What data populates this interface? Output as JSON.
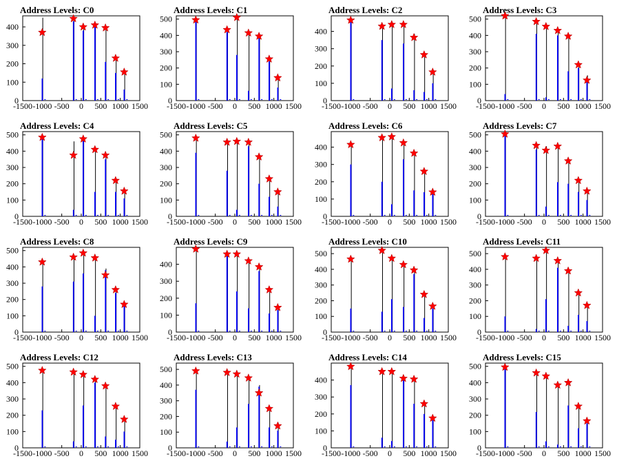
{
  "colors": {
    "background": "#ffffff",
    "frame": "#000000",
    "bar": "#0000ff",
    "marker": "#ff0000",
    "trace": "#000000"
  },
  "chart_data": [
    {
      "type": "bar",
      "title": "Address Levels: C0",
      "xlim": [
        -1500,
        1500
      ],
      "ylim": [
        0,
        460
      ],
      "xticks": [
        -1500,
        -1000,
        -500,
        0,
        500,
        1000,
        1500
      ],
      "yticks": [
        0,
        100,
        200,
        300,
        400
      ],
      "x": [
        -1000,
        -200,
        50,
        350,
        620,
        880,
        1100
      ],
      "values": [
        120,
        430,
        380,
        400,
        210,
        150,
        60
      ],
      "trace": [
        450,
        450,
        410,
        420,
        400,
        235,
        165
      ],
      "peaks": {
        "x": [
          -1000,
          -200,
          50,
          350,
          620,
          880,
          1100
        ],
        "y": [
          370,
          445,
          400,
          410,
          395,
          230,
          155
        ]
      }
    },
    {
      "type": "bar",
      "title": "Address Levels: C1",
      "xlim": [
        -1500,
        1500
      ],
      "ylim": [
        0,
        520
      ],
      "xticks": [
        -1500,
        -1000,
        -500,
        0,
        500,
        1000,
        1500
      ],
      "yticks": [
        0,
        100,
        200,
        300,
        400,
        500
      ],
      "x": [
        -1000,
        -200,
        50,
        350,
        620,
        880,
        1100
      ],
      "values": [
        490,
        420,
        280,
        60,
        390,
        240,
        80
      ],
      "trace": [
        495,
        440,
        510,
        420,
        395,
        255,
        150
      ],
      "peaks": {
        "x": [
          -1000,
          -200,
          50,
          350,
          620,
          880,
          1100
        ],
        "y": [
          495,
          435,
          510,
          415,
          395,
          255,
          140
        ]
      }
    },
    {
      "type": "bar",
      "title": "Address Levels: C2",
      "xlim": [
        -1500,
        1500
      ],
      "ylim": [
        0,
        490
      ],
      "xticks": [
        -1500,
        -1000,
        -500,
        0,
        500,
        1000,
        1500
      ],
      "yticks": [
        0,
        100,
        200,
        300,
        400
      ],
      "x": [
        -1000,
        -200,
        50,
        350,
        620,
        880,
        1100
      ],
      "values": [
        460,
        350,
        70,
        330,
        60,
        50,
        100
      ],
      "trace": [
        470,
        440,
        450,
        450,
        385,
        275,
        170
      ],
      "peaks": {
        "x": [
          -1000,
          -200,
          50,
          350,
          620,
          880,
          1100
        ],
        "y": [
          465,
          430,
          440,
          440,
          365,
          265,
          165
        ]
      }
    },
    {
      "type": "bar",
      "title": "Address Levels: C3",
      "xlim": [
        -1500,
        1500
      ],
      "ylim": [
        0,
        520
      ],
      "xticks": [
        -1500,
        -1000,
        -500,
        0,
        500,
        1000,
        1500
      ],
      "yticks": [
        0,
        100,
        200,
        300,
        400,
        500
      ],
      "x": [
        -1000,
        -200,
        50,
        350,
        620,
        880,
        1100
      ],
      "values": [
        40,
        410,
        20,
        400,
        180,
        200,
        140
      ],
      "trace": [
        520,
        490,
        460,
        440,
        400,
        230,
        155
      ],
      "peaks": {
        "x": [
          -1000,
          -200,
          50,
          350,
          620,
          880,
          1100
        ],
        "y": [
          520,
          485,
          455,
          430,
          395,
          220,
          125
        ]
      }
    },
    {
      "type": "bar",
      "title": "Address Levels: C4",
      "xlim": [
        -1500,
        1500
      ],
      "ylim": [
        0,
        520
      ],
      "xticks": [
        -1500,
        -1000,
        -500,
        0,
        500,
        1000,
        1500
      ],
      "yticks": [
        0,
        100,
        200,
        300,
        400,
        500
      ],
      "x": [
        -1000,
        -200,
        50,
        350,
        620,
        880,
        1100
      ],
      "values": [
        480,
        40,
        470,
        150,
        350,
        150,
        110
      ],
      "trace": [
        490,
        460,
        480,
        420,
        390,
        230,
        165
      ],
      "peaks": {
        "x": [
          -1000,
          -200,
          50,
          350,
          620,
          880,
          1100
        ],
        "y": [
          485,
          375,
          475,
          410,
          375,
          220,
          155
        ]
      }
    },
    {
      "type": "bar",
      "title": "Address Levels: C5",
      "xlim": [
        -1500,
        1500
      ],
      "ylim": [
        0,
        520
      ],
      "xticks": [
        -1500,
        -1000,
        -500,
        0,
        500,
        1000,
        1500
      ],
      "yticks": [
        0,
        100,
        200,
        300,
        400,
        500
      ],
      "x": [
        -1000,
        -200,
        50,
        350,
        620,
        880,
        1100
      ],
      "values": [
        390,
        280,
        40,
        430,
        200,
        120,
        60
      ],
      "trace": [
        480,
        460,
        460,
        460,
        380,
        240,
        160
      ],
      "peaks": {
        "x": [
          -1000,
          -200,
          50,
          350,
          620,
          880,
          1100
        ],
        "y": [
          480,
          455,
          460,
          455,
          365,
          230,
          150
        ]
      }
    },
    {
      "type": "bar",
      "title": "Address Levels: C6",
      "xlim": [
        -1500,
        1500
      ],
      "ylim": [
        0,
        490
      ],
      "xticks": [
        -1500,
        -1000,
        -500,
        0,
        500,
        1000,
        1500
      ],
      "yticks": [
        0,
        100,
        200,
        300,
        400
      ],
      "x": [
        -1000,
        -200,
        50,
        350,
        620,
        880,
        1100
      ],
      "values": [
        300,
        200,
        70,
        330,
        150,
        140,
        150
      ],
      "trace": [
        420,
        460,
        470,
        430,
        380,
        270,
        150
      ],
      "peaks": {
        "x": [
          -1000,
          -200,
          50,
          350,
          620,
          880,
          1100
        ],
        "y": [
          415,
          455,
          460,
          425,
          365,
          260,
          140
        ]
      }
    },
    {
      "type": "bar",
      "title": "Address Levels: C7",
      "xlim": [
        -1500,
        1500
      ],
      "ylim": [
        0,
        520
      ],
      "xticks": [
        -1500,
        -1000,
        -500,
        0,
        500,
        1000,
        1500
      ],
      "yticks": [
        0,
        100,
        200,
        300,
        400,
        500
      ],
      "x": [
        -1000,
        -200,
        50,
        350,
        620,
        880,
        1100
      ],
      "values": [
        500,
        410,
        60,
        210,
        200,
        150,
        100
      ],
      "trace": [
        510,
        440,
        430,
        440,
        350,
        230,
        160
      ],
      "peaks": {
        "x": [
          -1000,
          -200,
          50,
          350,
          620,
          880,
          1100
        ],
        "y": [
          505,
          435,
          405,
          430,
          340,
          220,
          155
        ]
      }
    },
    {
      "type": "bar",
      "title": "Address Levels: C8",
      "xlim": [
        -1500,
        1500
      ],
      "ylim": [
        0,
        520
      ],
      "xticks": [
        -1500,
        -1000,
        -500,
        0,
        500,
        1000,
        1500
      ],
      "yticks": [
        0,
        100,
        200,
        300,
        400,
        500
      ],
      "x": [
        -1000,
        -200,
        50,
        350,
        620,
        880,
        1100
      ],
      "values": [
        280,
        310,
        360,
        100,
        380,
        240,
        170
      ],
      "trace": [
        440,
        470,
        500,
        470,
        390,
        270,
        175
      ],
      "peaks": {
        "x": [
          -1000,
          -200,
          50,
          350,
          620,
          880,
          1100
        ],
        "y": [
          430,
          460,
          485,
          455,
          350,
          260,
          170
        ]
      }
    },
    {
      "type": "bar",
      "title": "Address Levels: C9",
      "xlim": [
        -1500,
        1500
      ],
      "ylim": [
        0,
        500
      ],
      "xticks": [
        -1500,
        -1000,
        -500,
        0,
        500,
        1000,
        1500
      ],
      "yticks": [
        0,
        100,
        200,
        300,
        400
      ],
      "x": [
        -1000,
        -200,
        50,
        350,
        620,
        880,
        1100
      ],
      "values": [
        170,
        450,
        240,
        140,
        360,
        110,
        130
      ],
      "trace": [
        500,
        470,
        470,
        430,
        400,
        260,
        155
      ],
      "peaks": {
        "x": [
          -1000,
          -200,
          50,
          350,
          620,
          880,
          1100
        ],
        "y": [
          490,
          460,
          460,
          420,
          385,
          250,
          145
        ]
      }
    },
    {
      "type": "bar",
      "title": "Address Levels: C10",
      "xlim": [
        -1500,
        1500
      ],
      "ylim": [
        0,
        540
      ],
      "xticks": [
        -1500,
        -1000,
        -500,
        0,
        500,
        1000,
        1500
      ],
      "yticks": [
        0,
        100,
        200,
        300,
        400,
        500
      ],
      "x": [
        -1000,
        -200,
        50,
        350,
        620,
        880,
        1100
      ],
      "values": [
        150,
        130,
        210,
        160,
        370,
        90,
        150
      ],
      "trace": [
        470,
        530,
        480,
        440,
        400,
        250,
        170
      ],
      "peaks": {
        "x": [
          -1000,
          -200,
          50,
          350,
          620,
          880,
          1100
        ],
        "y": [
          465,
          520,
          470,
          430,
          395,
          240,
          165
        ]
      }
    },
    {
      "type": "bar",
      "title": "Address Levels: C11",
      "xlim": [
        -1500,
        1500
      ],
      "ylim": [
        0,
        540
      ],
      "xticks": [
        -1500,
        -1000,
        -500,
        0,
        500,
        1000,
        1500
      ],
      "yticks": [
        0,
        100,
        200,
        300,
        400,
        500
      ],
      "x": [
        -1000,
        -200,
        50,
        350,
        620,
        880,
        1100
      ],
      "values": [
        100,
        20,
        210,
        410,
        40,
        110,
        70
      ],
      "trace": [
        490,
        480,
        530,
        460,
        400,
        260,
        180
      ],
      "peaks": {
        "x": [
          -1000,
          -200,
          50,
          350,
          620,
          880,
          1100
        ],
        "y": [
          480,
          470,
          520,
          455,
          390,
          250,
          170
        ]
      }
    },
    {
      "type": "bar",
      "title": "Address Levels: C12",
      "xlim": [
        -1500,
        1500
      ],
      "ylim": [
        0,
        520
      ],
      "xticks": [
        -1500,
        -1000,
        -500,
        0,
        500,
        1000,
        1500
      ],
      "yticks": [
        0,
        100,
        200,
        300,
        400,
        500
      ],
      "x": [
        -1000,
        -200,
        50,
        350,
        620,
        880,
        1100
      ],
      "values": [
        230,
        40,
        260,
        400,
        70,
        50,
        100
      ],
      "trace": [
        480,
        470,
        460,
        430,
        390,
        265,
        180
      ],
      "peaks": {
        "x": [
          -1000,
          -200,
          50,
          350,
          620,
          880,
          1100
        ],
        "y": [
          475,
          465,
          450,
          420,
          380,
          255,
          175
        ]
      }
    },
    {
      "type": "bar",
      "title": "Address Levels: C13",
      "xlim": [
        -1500,
        1500
      ],
      "ylim": [
        0,
        540
      ],
      "xticks": [
        -1500,
        -1000,
        -500,
        0,
        500,
        1000,
        1500
      ],
      "yticks": [
        0,
        100,
        200,
        300,
        400,
        500
      ],
      "x": [
        -1000,
        -200,
        50,
        350,
        620,
        880,
        1100
      ],
      "values": [
        370,
        40,
        130,
        280,
        390,
        130,
        110
      ],
      "trace": [
        500,
        490,
        480,
        450,
        400,
        260,
        160
      ],
      "peaks": {
        "x": [
          -1000,
          -200,
          50,
          350,
          620,
          880,
          1100
        ],
        "y": [
          490,
          480,
          470,
          445,
          350,
          250,
          140
        ]
      }
    },
    {
      "type": "bar",
      "title": "Address Levels: C14",
      "xlim": [
        -1500,
        1500
      ],
      "ylim": [
        0,
        500
      ],
      "xticks": [
        -1500,
        -1000,
        -500,
        0,
        500,
        1000,
        1500
      ],
      "yticks": [
        0,
        100,
        200,
        300,
        400
      ],
      "x": [
        -1000,
        -200,
        50,
        350,
        620,
        880,
        1100
      ],
      "values": [
        370,
        60,
        40,
        410,
        260,
        200,
        170
      ],
      "trace": [
        490,
        460,
        460,
        420,
        420,
        270,
        180
      ],
      "peaks": {
        "x": [
          -1000,
          -200,
          50,
          350,
          620,
          880,
          1100
        ],
        "y": [
          480,
          450,
          450,
          410,
          405,
          260,
          175
        ]
      }
    },
    {
      "type": "bar",
      "title": "Address Levels: C15",
      "xlim": [
        -1500,
        1500
      ],
      "ylim": [
        0,
        520
      ],
      "xticks": [
        -1500,
        -1000,
        -500,
        0,
        500,
        1000,
        1500
      ],
      "yticks": [
        0,
        100,
        200,
        300,
        400,
        500
      ],
      "x": [
        -1000,
        -200,
        50,
        350,
        620,
        880,
        1100
      ],
      "values": [
        490,
        220,
        40,
        20,
        260,
        120,
        150
      ],
      "trace": [
        500,
        470,
        450,
        400,
        410,
        265,
        175
      ],
      "peaks": {
        "x": [
          -1000,
          -200,
          50,
          350,
          620,
          880,
          1100
        ],
        "y": [
          495,
          460,
          440,
          385,
          400,
          255,
          165
        ]
      }
    }
  ]
}
